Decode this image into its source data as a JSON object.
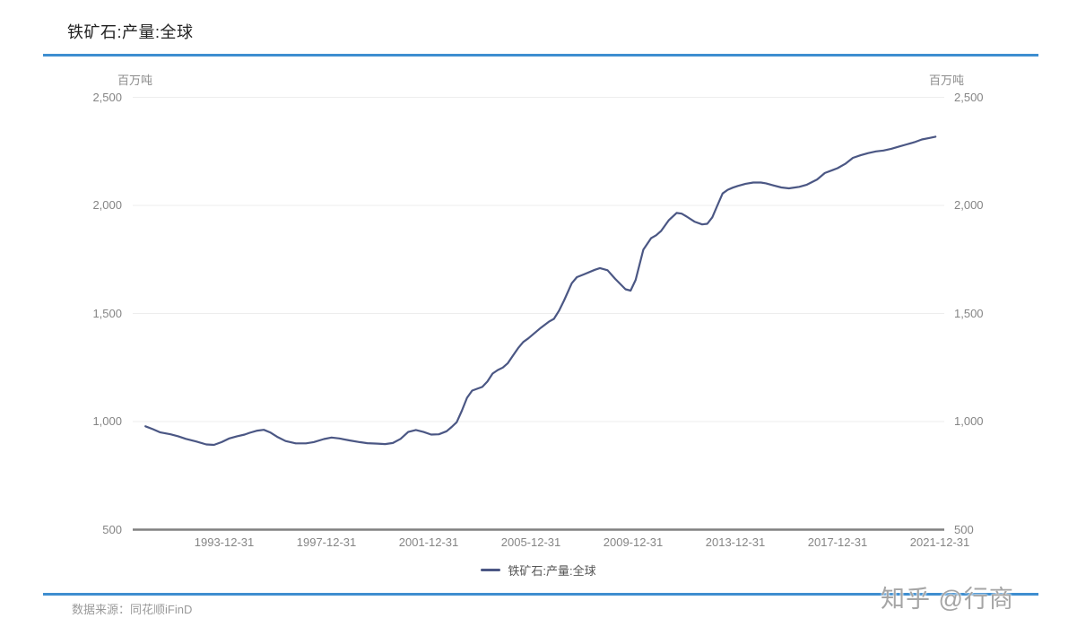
{
  "title": "铁矿石:产量:全球",
  "colors": {
    "accent_rule": "#3e8ed0",
    "series_line": "#4b5784",
    "gridline": "#ededed",
    "axis_line": "#808080",
    "tick_text": "#858585"
  },
  "y_axis": {
    "unit_left": "百万吨",
    "unit_right": "百万吨",
    "ticks": [
      {
        "value": 2500,
        "label": "2,500"
      },
      {
        "value": 2000,
        "label": "2,000"
      },
      {
        "value": 1500,
        "label": "1,500"
      },
      {
        "value": 1000,
        "label": "1,000"
      },
      {
        "value": 500,
        "label": "500"
      }
    ]
  },
  "x_axis": {
    "ticks": [
      {
        "year": 1994,
        "label": "1993-12-31"
      },
      {
        "year": 1998,
        "label": "1997-12-31"
      },
      {
        "year": 2002,
        "label": "2001-12-31"
      },
      {
        "year": 2006,
        "label": "2005-12-31"
      },
      {
        "year": 2010,
        "label": "2009-12-31"
      },
      {
        "year": 2014,
        "label": "2013-12-31"
      },
      {
        "year": 2018,
        "label": "2017-12-31"
      },
      {
        "year": 2022,
        "label": "2021-12-31"
      }
    ]
  },
  "legend": {
    "label": "铁矿石:产量:全球"
  },
  "footer": {
    "source_label": "数据来源：同花顺iFinD"
  },
  "watermark": "知乎 @行商",
  "chart_data": {
    "type": "line",
    "title": "铁矿石:产量:全球",
    "series_name": "铁矿石:产量:全球",
    "ylabel": "百万吨",
    "ylim": [
      500,
      2500
    ],
    "x_range_decimal_years": [
      1990.92,
      2021.83
    ],
    "x_tick_labels": [
      "1993-12-31",
      "1997-12-31",
      "2001-12-31",
      "2005-12-31",
      "2009-12-31",
      "2013-12-31",
      "2017-12-31",
      "2021-12-31"
    ],
    "grid": true,
    "legend_position": "bottom",
    "points": [
      [
        1990.92,
        978
      ],
      [
        1991.2,
        965
      ],
      [
        1991.5,
        950
      ],
      [
        1991.9,
        941
      ],
      [
        1992.2,
        932
      ],
      [
        1992.5,
        920
      ],
      [
        1992.9,
        908
      ],
      [
        1993.3,
        894
      ],
      [
        1993.6,
        892
      ],
      [
        1993.9,
        905
      ],
      [
        1994.2,
        922
      ],
      [
        1994.5,
        932
      ],
      [
        1994.8,
        940
      ],
      [
        1995.0,
        948
      ],
      [
        1995.3,
        958
      ],
      [
        1995.55,
        962
      ],
      [
        1995.8,
        950
      ],
      [
        1996.1,
        928
      ],
      [
        1996.4,
        910
      ],
      [
        1996.8,
        899
      ],
      [
        1997.2,
        899
      ],
      [
        1997.5,
        905
      ],
      [
        1997.9,
        919
      ],
      [
        1998.2,
        926
      ],
      [
        1998.5,
        922
      ],
      [
        1998.9,
        913
      ],
      [
        1999.3,
        905
      ],
      [
        1999.6,
        900
      ],
      [
        2000.0,
        898
      ],
      [
        2000.3,
        896
      ],
      [
        2000.6,
        901
      ],
      [
        2000.9,
        920
      ],
      [
        2001.2,
        952
      ],
      [
        2001.5,
        961
      ],
      [
        2001.8,
        952
      ],
      [
        2002.1,
        940
      ],
      [
        2002.4,
        941
      ],
      [
        2002.7,
        955
      ],
      [
        2002.9,
        975
      ],
      [
        2003.1,
        997
      ],
      [
        2003.3,
        1050
      ],
      [
        2003.5,
        1110
      ],
      [
        2003.7,
        1143
      ],
      [
        2003.9,
        1152
      ],
      [
        2004.1,
        1160
      ],
      [
        2004.3,
        1185
      ],
      [
        2004.5,
        1222
      ],
      [
        2004.7,
        1238
      ],
      [
        2004.9,
        1250
      ],
      [
        2005.1,
        1270
      ],
      [
        2005.3,
        1305
      ],
      [
        2005.5,
        1340
      ],
      [
        2005.7,
        1368
      ],
      [
        2005.9,
        1385
      ],
      [
        2006.1,
        1405
      ],
      [
        2006.4,
        1435
      ],
      [
        2006.7,
        1462
      ],
      [
        2006.9,
        1475
      ],
      [
        2007.1,
        1512
      ],
      [
        2007.3,
        1560
      ],
      [
        2007.6,
        1640
      ],
      [
        2007.8,
        1668
      ],
      [
        2008.1,
        1682
      ],
      [
        2008.5,
        1702
      ],
      [
        2008.7,
        1710
      ],
      [
        2009.0,
        1700
      ],
      [
        2009.3,
        1660
      ],
      [
        2009.7,
        1612
      ],
      [
        2009.9,
        1606
      ],
      [
        2010.1,
        1655
      ],
      [
        2010.4,
        1795
      ],
      [
        2010.7,
        1848
      ],
      [
        2010.9,
        1862
      ],
      [
        2011.1,
        1882
      ],
      [
        2011.4,
        1932
      ],
      [
        2011.7,
        1965
      ],
      [
        2011.9,
        1962
      ],
      [
        2012.1,
        1948
      ],
      [
        2012.4,
        1925
      ],
      [
        2012.7,
        1912
      ],
      [
        2012.9,
        1915
      ],
      [
        2013.1,
        1945
      ],
      [
        2013.3,
        2000
      ],
      [
        2013.5,
        2055
      ],
      [
        2013.7,
        2072
      ],
      [
        2013.9,
        2082
      ],
      [
        2014.1,
        2090
      ],
      [
        2014.4,
        2100
      ],
      [
        2014.7,
        2106
      ],
      [
        2015.0,
        2106
      ],
      [
        2015.2,
        2102
      ],
      [
        2015.5,
        2092
      ],
      [
        2015.8,
        2083
      ],
      [
        2016.1,
        2079
      ],
      [
        2016.5,
        2086
      ],
      [
        2016.8,
        2096
      ],
      [
        2017.2,
        2120
      ],
      [
        2017.5,
        2150
      ],
      [
        2017.8,
        2163
      ],
      [
        2018.0,
        2172
      ],
      [
        2018.3,
        2192
      ],
      [
        2018.6,
        2220
      ],
      [
        2018.9,
        2232
      ],
      [
        2019.2,
        2242
      ],
      [
        2019.5,
        2250
      ],
      [
        2019.8,
        2254
      ],
      [
        2020.1,
        2262
      ],
      [
        2020.4,
        2272
      ],
      [
        2020.7,
        2282
      ],
      [
        2021.0,
        2292
      ],
      [
        2021.3,
        2305
      ],
      [
        2021.6,
        2312
      ],
      [
        2021.83,
        2318
      ]
    ]
  }
}
